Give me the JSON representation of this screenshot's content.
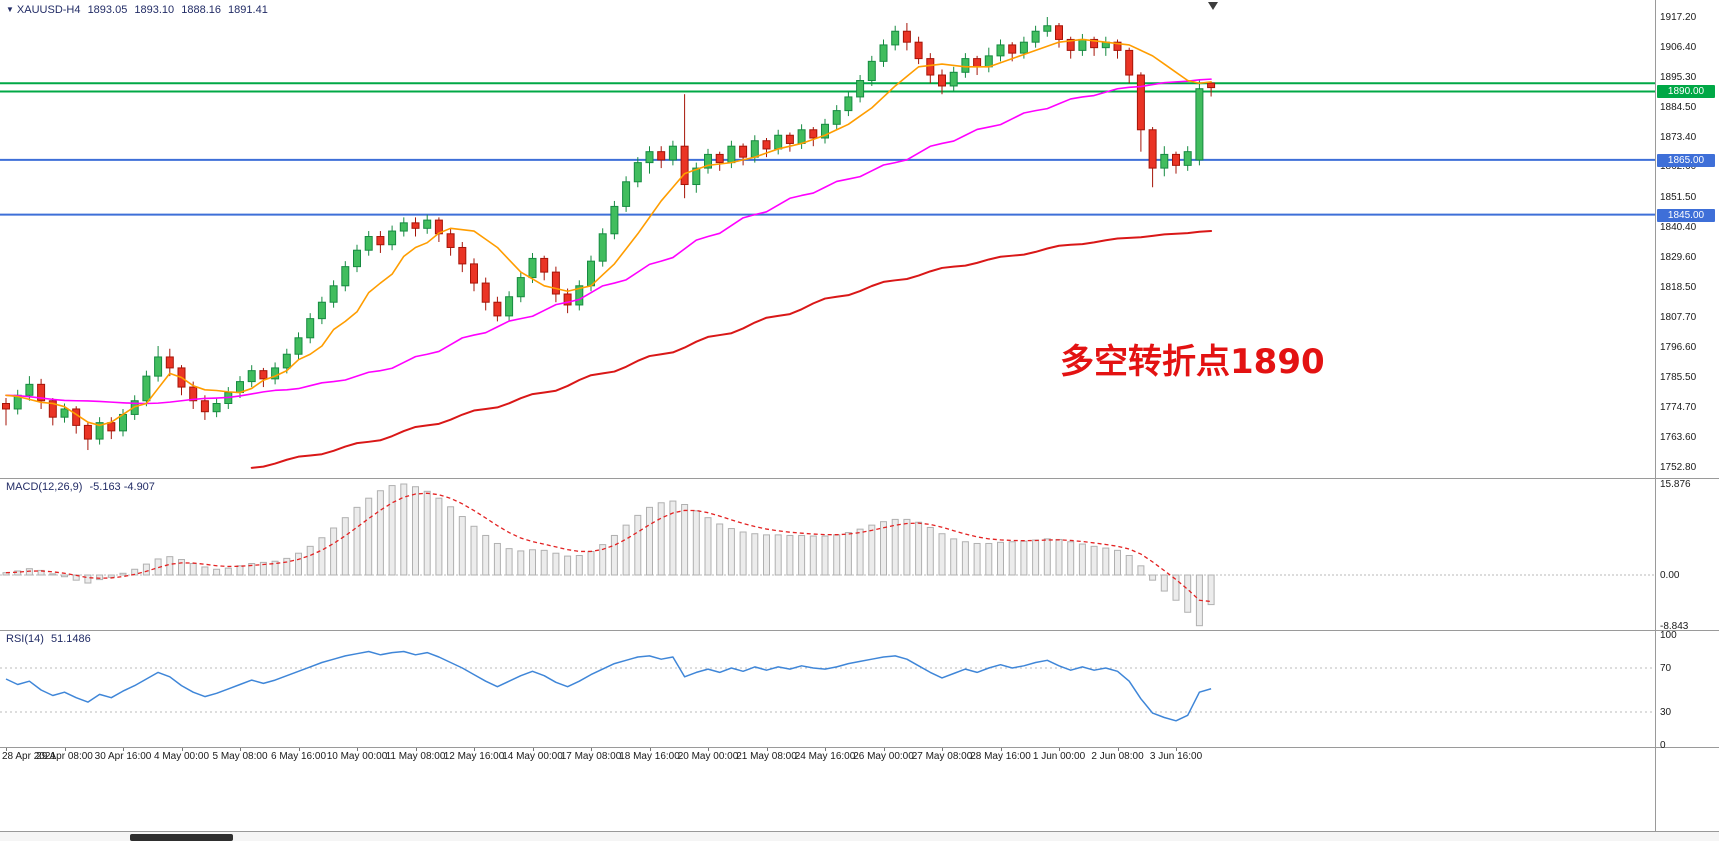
{
  "header": {
    "symbol_period": "XAUUSD-H4",
    "open": "1893.05",
    "high": "1893.10",
    "low": "1888.16",
    "close": "1891.41"
  },
  "indicators": {
    "macd_label": "MACD(12,26,9)",
    "macd_values": "-5.163 -4.907",
    "rsi_label": "RSI(14)",
    "rsi_value": "51.1486"
  },
  "annotation": {
    "text": "多空转折点1890",
    "color": "#e31212"
  },
  "axes": {
    "price_ticks": [
      {
        "label": "1917.20",
        "value": 1917.2
      },
      {
        "label": "1906.40",
        "value": 1906.4
      },
      {
        "label": "1895.30",
        "value": 1895.3
      },
      {
        "label": "1884.50",
        "value": 1884.5
      },
      {
        "label": "1873.40",
        "value": 1873.4
      },
      {
        "label": "1862.60",
        "value": 1862.6
      },
      {
        "label": "1851.50",
        "value": 1851.5
      },
      {
        "label": "1840.40",
        "value": 1840.4
      },
      {
        "label": "1829.60",
        "value": 1829.6
      },
      {
        "label": "1818.50",
        "value": 1818.5
      },
      {
        "label": "1807.70",
        "value": 1807.7
      },
      {
        "label": "1796.60",
        "value": 1796.6
      },
      {
        "label": "1785.50",
        "value": 1785.5
      },
      {
        "label": "1774.70",
        "value": 1774.7
      },
      {
        "label": "1763.60",
        "value": 1763.6
      },
      {
        "label": "1752.80",
        "value": 1752.8
      }
    ],
    "macd_ticks": [
      {
        "label": "15.876",
        "value": 15.876
      },
      {
        "label": "0.00",
        "value": 0
      },
      {
        "label": "-8.843",
        "value": -8.843
      }
    ],
    "rsi_ticks": [
      {
        "label": "100",
        "value": 100
      },
      {
        "label": "70",
        "value": 70
      },
      {
        "label": "30",
        "value": 30
      },
      {
        "label": "0",
        "value": 0
      }
    ],
    "time_ticks": [
      "28 Apr 2021",
      "29 Apr 08:00",
      "30 Apr 16:00",
      "4 May 00:00",
      "5 May 08:00",
      "6 May 16:00",
      "10 May 00:00",
      "11 May 08:00",
      "12 May 16:00",
      "14 May 00:00",
      "17 May 08:00",
      "18 May 16:00",
      "20 May 00:00",
      "21 May 08:00",
      "24 May 16:00",
      "26 May 00:00",
      "27 May 08:00",
      "28 May 16:00",
      "1 Jun 00:00",
      "2 Jun 08:00",
      "3 Jun 16:00"
    ]
  },
  "levels": [
    {
      "price": 1893.0,
      "color": "#00a846",
      "chip": null
    },
    {
      "price": 1890.0,
      "color": "#00a846",
      "chip": "1890.00"
    },
    {
      "price": 1865.0,
      "color": "#3e6fd8",
      "chip": "1865.00"
    },
    {
      "price": 1845.0,
      "color": "#3e6fd8",
      "chip": "1845.00"
    }
  ],
  "colors": {
    "bull_fill": "#41bd5e",
    "bull_stroke": "#168a41",
    "bear_fill": "#ea3425",
    "bear_stroke": "#a51408",
    "ma_fast": "#ff9d00",
    "ma_mid": "#ff00ff",
    "ma_slow": "#d91717",
    "macd_bar_fill": "#ececec",
    "macd_bar_stroke": "#b0b0b0",
    "macd_signal": "#e32222",
    "rsi_line": "#3f86d8",
    "guide": "#bbbbbb"
  },
  "chart_data": {
    "type": "candlestick",
    "symbol": "XAUUSD",
    "timeframe": "H4",
    "price_range": {
      "top": 1917.2,
      "bottom": 1752.8
    },
    "candles": [
      [
        1776,
        1778,
        1768,
        1774
      ],
      [
        1774,
        1781,
        1772,
        1779
      ],
      [
        1779,
        1786,
        1777,
        1783
      ],
      [
        1783,
        1785,
        1774,
        1777
      ],
      [
        1777,
        1778,
        1768,
        1771
      ],
      [
        1771,
        1776,
        1769,
        1774
      ],
      [
        1774,
        1775,
        1765,
        1768
      ],
      [
        1768,
        1769,
        1759,
        1763
      ],
      [
        1763,
        1771,
        1761,
        1769
      ],
      [
        1769,
        1771,
        1763,
        1766
      ],
      [
        1766,
        1774,
        1764,
        1772
      ],
      [
        1772,
        1779,
        1770,
        1777
      ],
      [
        1777,
        1788,
        1775,
        1786
      ],
      [
        1786,
        1797,
        1784,
        1793
      ],
      [
        1793,
        1796,
        1786,
        1789
      ],
      [
        1789,
        1790,
        1779,
        1782
      ],
      [
        1782,
        1784,
        1774,
        1777
      ],
      [
        1777,
        1779,
        1770,
        1773
      ],
      [
        1773,
        1778,
        1771,
        1776
      ],
      [
        1776,
        1782,
        1774,
        1780
      ],
      [
        1780,
        1786,
        1778,
        1784
      ],
      [
        1784,
        1790,
        1782,
        1788
      ],
      [
        1788,
        1789,
        1782,
        1785
      ],
      [
        1785,
        1791,
        1783,
        1789
      ],
      [
        1789,
        1796,
        1787,
        1794
      ],
      [
        1794,
        1802,
        1792,
        1800
      ],
      [
        1800,
        1809,
        1798,
        1807
      ],
      [
        1807,
        1815,
        1805,
        1813
      ],
      [
        1813,
        1821,
        1811,
        1819
      ],
      [
        1819,
        1828,
        1817,
        1826
      ],
      [
        1826,
        1834,
        1824,
        1832
      ],
      [
        1832,
        1839,
        1830,
        1837
      ],
      [
        1837,
        1839,
        1831,
        1834
      ],
      [
        1834,
        1841,
        1832,
        1839
      ],
      [
        1839,
        1844,
        1837,
        1842
      ],
      [
        1842,
        1844,
        1837,
        1840
      ],
      [
        1840,
        1845,
        1838,
        1843
      ],
      [
        1843,
        1844,
        1835,
        1838
      ],
      [
        1838,
        1840,
        1830,
        1833
      ],
      [
        1833,
        1835,
        1824,
        1827
      ],
      [
        1827,
        1829,
        1817,
        1820
      ],
      [
        1820,
        1822,
        1810,
        1813
      ],
      [
        1813,
        1815,
        1806,
        1808
      ],
      [
        1808,
        1817,
        1806,
        1815
      ],
      [
        1815,
        1824,
        1813,
        1822
      ],
      [
        1822,
        1831,
        1820,
        1829
      ],
      [
        1829,
        1830,
        1821,
        1824
      ],
      [
        1824,
        1826,
        1813,
        1816
      ],
      [
        1816,
        1818,
        1809,
        1812
      ],
      [
        1812,
        1821,
        1810,
        1819
      ],
      [
        1819,
        1830,
        1817,
        1828
      ],
      [
        1828,
        1840,
        1826,
        1838
      ],
      [
        1838,
        1850,
        1836,
        1848
      ],
      [
        1848,
        1859,
        1846,
        1857
      ],
      [
        1857,
        1866,
        1855,
        1864
      ],
      [
        1864,
        1870,
        1860,
        1868
      ],
      [
        1868,
        1870,
        1862,
        1865
      ],
      [
        1865,
        1872,
        1863,
        1870
      ],
      [
        1870,
        1889,
        1851,
        1856
      ],
      [
        1856,
        1864,
        1853,
        1862
      ],
      [
        1862,
        1869,
        1860,
        1867
      ],
      [
        1867,
        1868,
        1861,
        1864
      ],
      [
        1864,
        1872,
        1862,
        1870
      ],
      [
        1870,
        1871,
        1863,
        1866
      ],
      [
        1866,
        1874,
        1864,
        1872
      ],
      [
        1872,
        1873,
        1866,
        1869
      ],
      [
        1869,
        1876,
        1867,
        1874
      ],
      [
        1874,
        1875,
        1868,
        1871
      ],
      [
        1871,
        1878,
        1869,
        1876
      ],
      [
        1876,
        1877,
        1870,
        1873
      ],
      [
        1873,
        1880,
        1871,
        1878
      ],
      [
        1878,
        1885,
        1876,
        1883
      ],
      [
        1883,
        1890,
        1881,
        1888
      ],
      [
        1888,
        1896,
        1886,
        1894
      ],
      [
        1894,
        1903,
        1892,
        1901
      ],
      [
        1901,
        1909,
        1899,
        1907
      ],
      [
        1907,
        1914,
        1905,
        1912
      ],
      [
        1912,
        1915,
        1905,
        1908
      ],
      [
        1908,
        1910,
        1900,
        1902
      ],
      [
        1902,
        1904,
        1893,
        1896
      ],
      [
        1896,
        1898,
        1889,
        1892
      ],
      [
        1892,
        1899,
        1890,
        1897
      ],
      [
        1897,
        1904,
        1895,
        1902
      ],
      [
        1902,
        1903,
        1896,
        1899
      ],
      [
        1899,
        1906,
        1897,
        1903
      ],
      [
        1903,
        1909,
        1901,
        1907
      ],
      [
        1907,
        1908,
        1901,
        1904
      ],
      [
        1904,
        1910,
        1902,
        1908
      ],
      [
        1908,
        1914,
        1906,
        1912
      ],
      [
        1912,
        1917.2,
        1910,
        1914
      ],
      [
        1914,
        1915,
        1906,
        1909
      ],
      [
        1909,
        1910,
        1902,
        1905
      ],
      [
        1905,
        1911,
        1903,
        1909
      ],
      [
        1909,
        1910,
        1903,
        1906
      ],
      [
        1906,
        1910,
        1903,
        1908
      ],
      [
        1908,
        1909,
        1902,
        1905
      ],
      [
        1905,
        1906,
        1893,
        1896
      ],
      [
        1896,
        1897,
        1868,
        1876
      ],
      [
        1876,
        1877,
        1855,
        1862
      ],
      [
        1862,
        1870,
        1859,
        1867
      ],
      [
        1867,
        1868,
        1860,
        1863
      ],
      [
        1863,
        1870,
        1861,
        1868
      ],
      [
        1865,
        1894,
        1863,
        1891
      ],
      [
        1893.05,
        1893.1,
        1888.16,
        1891.41
      ]
    ],
    "ma_fast_anchors": [
      [
        0,
        1779
      ],
      [
        4,
        1776
      ],
      [
        8,
        1768
      ],
      [
        12,
        1776
      ],
      [
        14,
        1787
      ],
      [
        17,
        1781
      ],
      [
        20,
        1780
      ],
      [
        23,
        1786
      ],
      [
        26,
        1794
      ],
      [
        29,
        1806
      ],
      [
        32,
        1820
      ],
      [
        35,
        1833
      ],
      [
        38,
        1840
      ],
      [
        40,
        1839
      ],
      [
        42,
        1833
      ],
      [
        44,
        1824
      ],
      [
        46,
        1819
      ],
      [
        48,
        1817
      ],
      [
        50,
        1819
      ],
      [
        52,
        1827
      ],
      [
        54,
        1838
      ],
      [
        56,
        1850
      ],
      [
        58,
        1860
      ],
      [
        60,
        1863
      ],
      [
        62,
        1864
      ],
      [
        64,
        1866
      ],
      [
        66,
        1869
      ],
      [
        68,
        1871
      ],
      [
        70,
        1874
      ],
      [
        72,
        1878
      ],
      [
        74,
        1884
      ],
      [
        76,
        1892
      ],
      [
        78,
        1899
      ],
      [
        80,
        1900
      ],
      [
        82,
        1899
      ],
      [
        84,
        1899
      ],
      [
        86,
        1902
      ],
      [
        88,
        1905
      ],
      [
        90,
        1908
      ],
      [
        92,
        1909
      ],
      [
        94,
        1908
      ],
      [
        96,
        1907
      ],
      [
        98,
        1903
      ],
      [
        100,
        1897
      ],
      [
        101,
        1894
      ],
      [
        102,
        1893
      ],
      [
        103,
        1893.5
      ]
    ],
    "ma_mid_anchors": [
      [
        0,
        1779
      ],
      [
        6,
        1777
      ],
      [
        12,
        1776
      ],
      [
        18,
        1778
      ],
      [
        24,
        1781
      ],
      [
        28,
        1784
      ],
      [
        32,
        1788
      ],
      [
        36,
        1794
      ],
      [
        40,
        1801
      ],
      [
        44,
        1807
      ],
      [
        48,
        1813
      ],
      [
        52,
        1820
      ],
      [
        56,
        1828
      ],
      [
        60,
        1837
      ],
      [
        64,
        1845
      ],
      [
        68,
        1852
      ],
      [
        72,
        1858
      ],
      [
        76,
        1864
      ],
      [
        80,
        1871
      ],
      [
        84,
        1877
      ],
      [
        88,
        1883
      ],
      [
        92,
        1888
      ],
      [
        96,
        1891.5
      ],
      [
        100,
        1893.5
      ],
      [
        103,
        1894.5
      ]
    ],
    "ma_slow_anchors": [
      [
        21,
        1752.5
      ],
      [
        26,
        1757
      ],
      [
        31,
        1762
      ],
      [
        36,
        1768
      ],
      [
        41,
        1774
      ],
      [
        46,
        1780
      ],
      [
        51,
        1787
      ],
      [
        56,
        1794
      ],
      [
        61,
        1801
      ],
      [
        66,
        1808
      ],
      [
        71,
        1815
      ],
      [
        76,
        1821
      ],
      [
        81,
        1826
      ],
      [
        86,
        1830
      ],
      [
        91,
        1834
      ],
      [
        96,
        1836.5
      ],
      [
        100,
        1838
      ],
      [
        103,
        1839
      ]
    ],
    "macd": {
      "values": [
        0.4,
        0.7,
        1.1,
        0.8,
        0.2,
        -0.3,
        -0.9,
        -1.4,
        -0.8,
        -0.4,
        0.3,
        1.0,
        1.9,
        2.8,
        3.2,
        2.7,
        2.0,
        1.4,
        1.0,
        1.2,
        1.6,
        2.0,
        2.2,
        2.4,
        2.9,
        3.8,
        5.0,
        6.5,
        8.2,
        10.0,
        11.8,
        13.4,
        14.7,
        15.6,
        15.876,
        15.4,
        14.6,
        13.4,
        11.9,
        10.2,
        8.5,
        6.9,
        5.5,
        4.6,
        4.2,
        4.4,
        4.3,
        3.8,
        3.3,
        3.4,
        4.1,
        5.3,
        6.9,
        8.7,
        10.4,
        11.8,
        12.6,
        12.9,
        12.3,
        11.2,
        10.0,
        8.9,
        8.1,
        7.5,
        7.2,
        7.0,
        7.0,
        6.9,
        6.9,
        6.8,
        6.8,
        7.0,
        7.4,
        8.0,
        8.7,
        9.3,
        9.7,
        9.7,
        9.2,
        8.3,
        7.2,
        6.3,
        5.8,
        5.5,
        5.5,
        5.7,
        5.8,
        5.9,
        6.1,
        6.3,
        6.2,
        5.8,
        5.4,
        5.0,
        4.7,
        4.3,
        3.4,
        1.6,
        -0.9,
        -2.8,
        -4.4,
        -6.5,
        -8.843,
        -5.163
      ],
      "max": 15.876,
      "min": -8.843
    },
    "rsi": {
      "values": [
        60,
        55,
        58,
        50,
        45,
        48,
        43,
        39,
        46,
        43,
        49,
        54,
        60,
        66,
        62,
        54,
        48,
        44,
        47,
        51,
        55,
        59,
        56,
        59,
        63,
        67,
        71,
        75,
        78,
        81,
        83,
        85,
        82,
        84,
        85,
        82,
        84,
        80,
        75,
        70,
        64,
        58,
        53,
        58,
        63,
        67,
        63,
        57,
        53,
        58,
        64,
        69,
        74,
        77,
        80,
        81,
        78,
        80,
        62,
        66,
        69,
        66,
        70,
        67,
        71,
        68,
        71,
        69,
        72,
        70,
        69,
        71,
        74,
        76,
        78,
        80,
        81,
        78,
        72,
        66,
        61,
        65,
        69,
        66,
        70,
        73,
        70,
        72,
        75,
        77,
        72,
        68,
        71,
        68,
        70,
        67,
        58,
        42,
        29,
        25,
        22,
        27,
        48,
        51.1486
      ],
      "levels": [
        70,
        30
      ]
    }
  }
}
